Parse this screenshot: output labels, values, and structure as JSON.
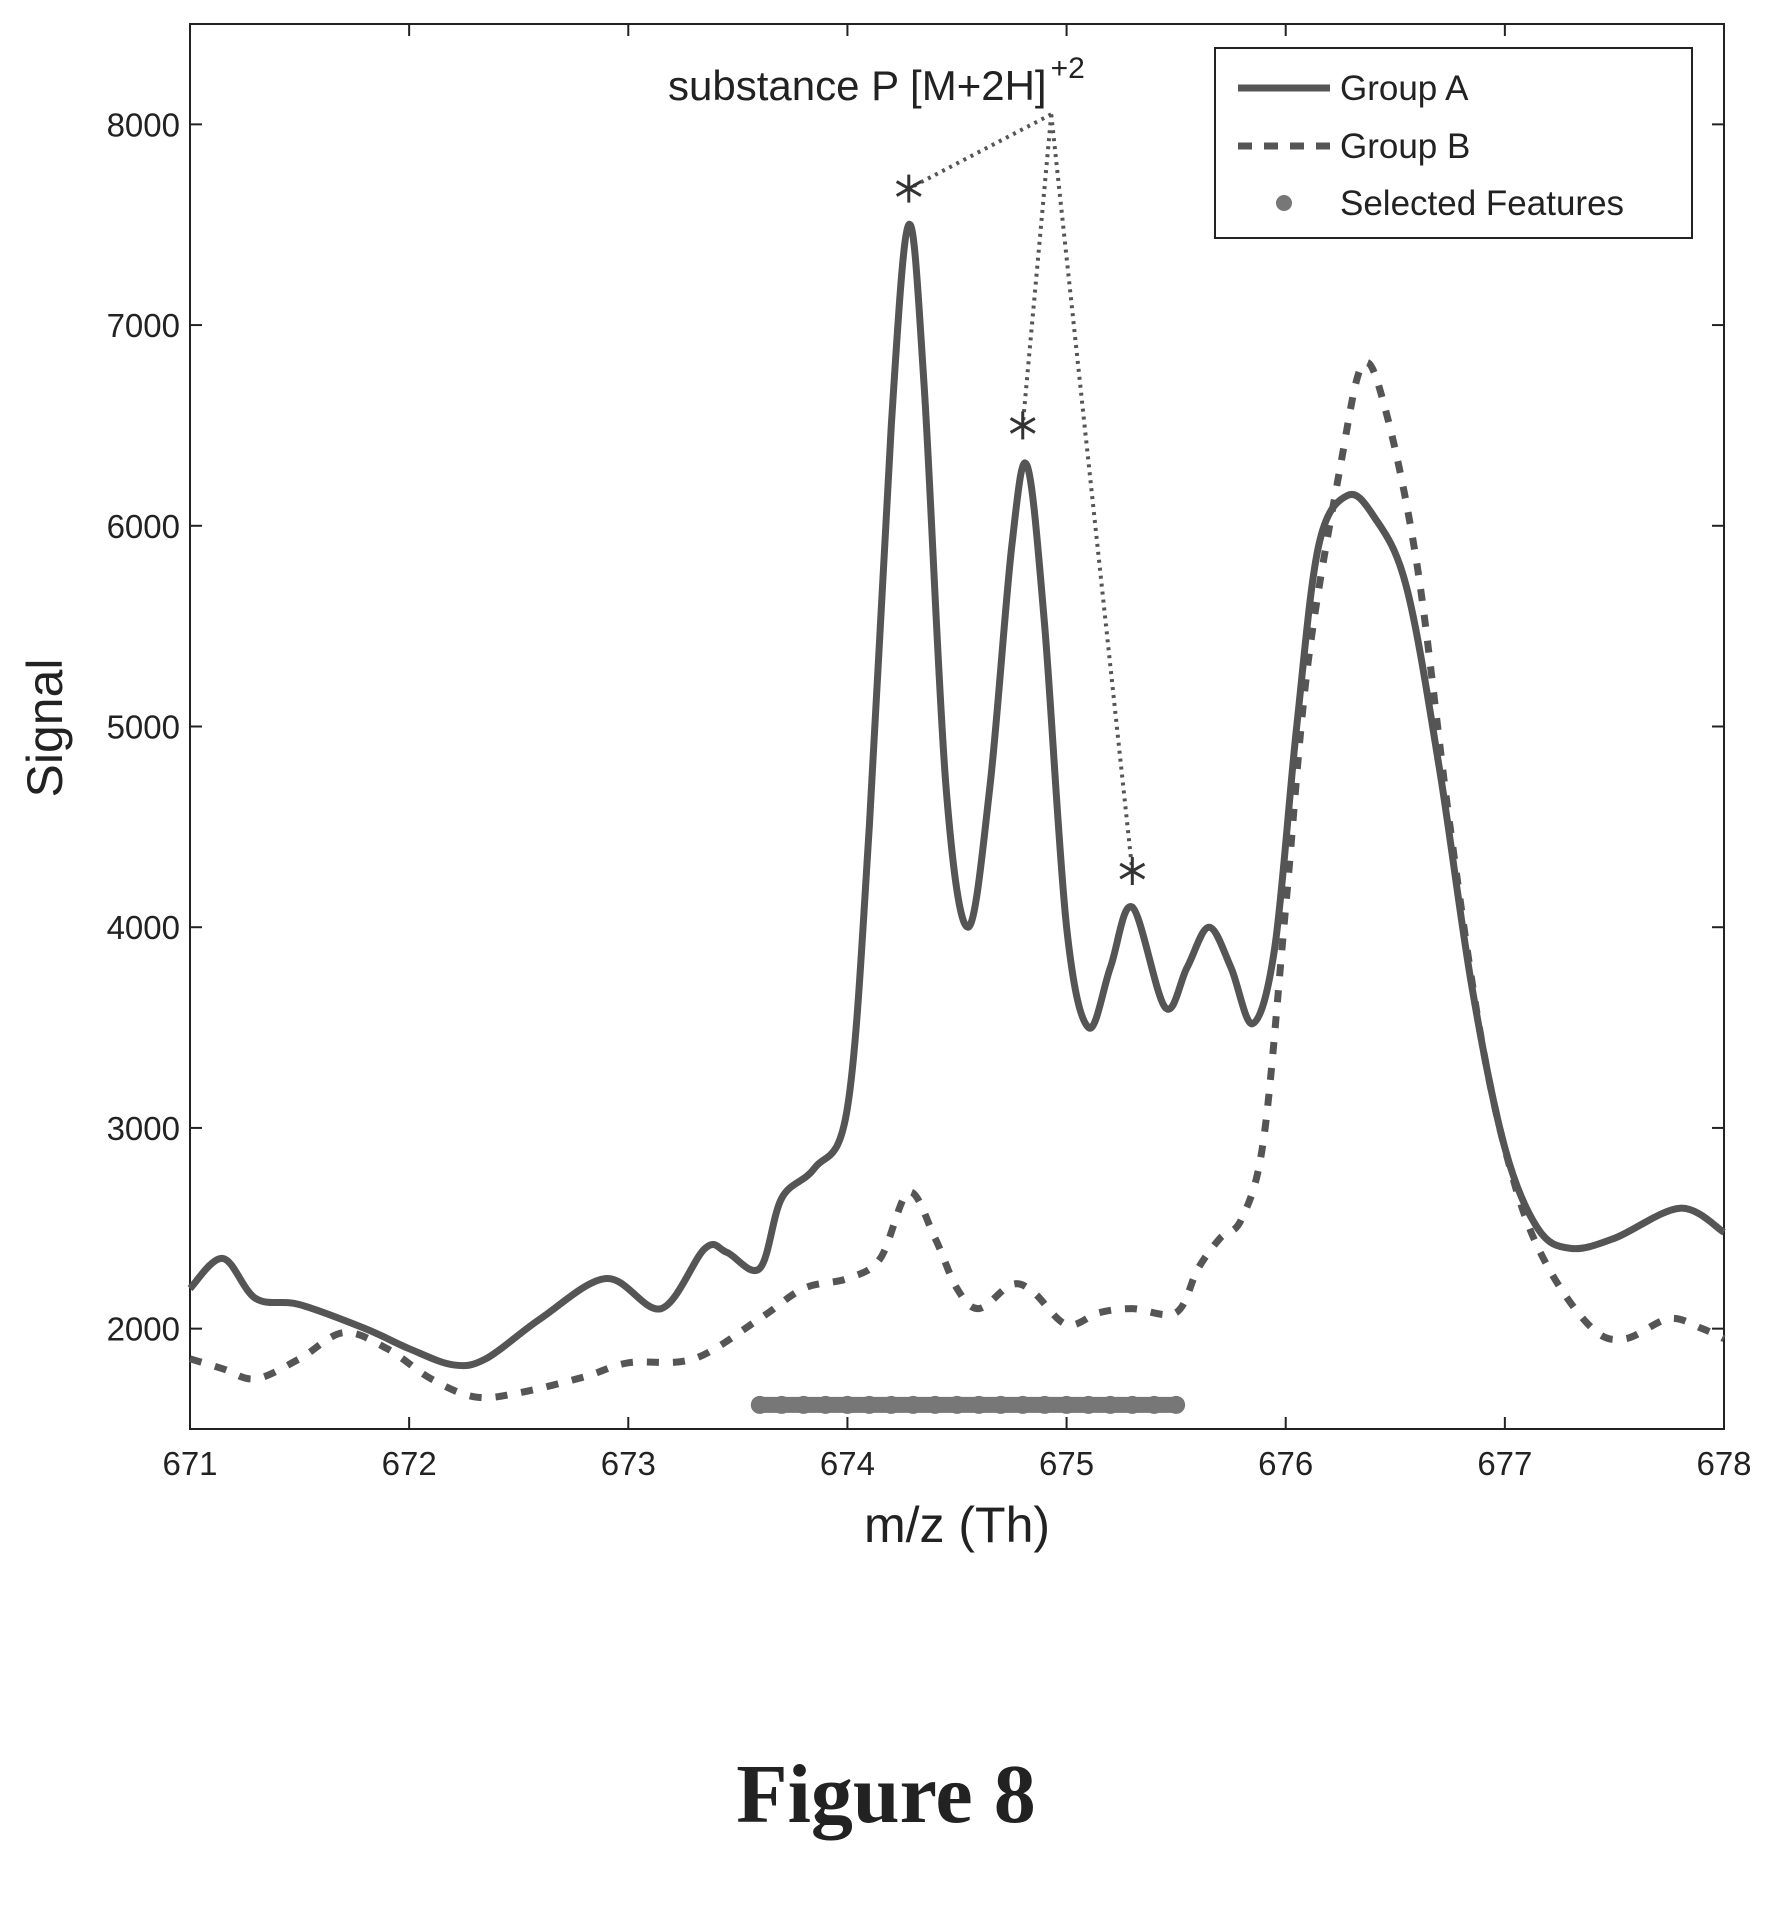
{
  "chart_data": {
    "type": "line",
    "xlabel": "m/z (Th)",
    "ylabel": "Signal",
    "xlim": [
      671,
      678
    ],
    "ylim": [
      1500,
      8500
    ],
    "x_ticks": [
      "671",
      "672",
      "673",
      "674",
      "675",
      "676",
      "677",
      "678"
    ],
    "y_ticks": [
      "2000",
      "3000",
      "4000",
      "5000",
      "6000",
      "7000",
      "8000"
    ],
    "grid": false,
    "legend_position": "top-right",
    "legend": [
      "Group A",
      "Group B",
      "Selected Features"
    ],
    "series": [
      {
        "name": "Group A",
        "style": "solid",
        "x": [
          671.0,
          671.15,
          671.3,
          671.5,
          671.8,
          672.0,
          672.2,
          672.35,
          672.6,
          672.9,
          673.15,
          673.35,
          673.45,
          673.6,
          673.7,
          673.85,
          674.0,
          674.1,
          674.2,
          674.28,
          674.35,
          674.45,
          674.55,
          674.65,
          674.75,
          674.82,
          674.9,
          675.0,
          675.1,
          675.2,
          675.3,
          675.45,
          675.55,
          675.65,
          675.75,
          675.85,
          675.95,
          676.05,
          676.15,
          676.28,
          676.4,
          676.55,
          676.7,
          676.85,
          677.0,
          677.15,
          677.3,
          677.5,
          677.8,
          678.0
        ],
        "y": [
          2200,
          2350,
          2150,
          2120,
          2000,
          1900,
          1820,
          1850,
          2050,
          2250,
          2100,
          2400,
          2380,
          2300,
          2650,
          2800,
          3100,
          4500,
          6500,
          7500,
          6700,
          4700,
          4000,
          4700,
          5900,
          6300,
          5500,
          4000,
          3500,
          3800,
          4100,
          3600,
          3800,
          4000,
          3800,
          3520,
          3900,
          5000,
          5900,
          6150,
          6050,
          5700,
          4800,
          3700,
          2900,
          2500,
          2400,
          2450,
          2600,
          2480
        ]
      },
      {
        "name": "Group B",
        "style": "dashed",
        "x": [
          671.0,
          671.15,
          671.3,
          671.5,
          671.7,
          671.9,
          672.1,
          672.3,
          672.5,
          672.8,
          673.0,
          673.3,
          673.6,
          673.8,
          674.0,
          674.15,
          674.28,
          674.4,
          674.5,
          674.6,
          674.75,
          674.85,
          675.0,
          675.15,
          675.3,
          675.5,
          675.6,
          675.7,
          675.8,
          675.9,
          676.0,
          676.1,
          676.25,
          676.35,
          676.45,
          676.6,
          676.75,
          676.9,
          677.05,
          677.2,
          677.4,
          677.55,
          677.75,
          677.9,
          678.0
        ],
        "y": [
          1850,
          1800,
          1750,
          1850,
          1980,
          1900,
          1750,
          1660,
          1680,
          1760,
          1830,
          1850,
          2050,
          2200,
          2250,
          2350,
          2680,
          2450,
          2200,
          2100,
          2220,
          2180,
          2020,
          2080,
          2100,
          2080,
          2300,
          2450,
          2550,
          2950,
          4100,
          5300,
          6300,
          6800,
          6600,
          5800,
          4500,
          3400,
          2700,
          2300,
          2000,
          1950,
          2050,
          2000,
          1950
        ]
      },
      {
        "name": "Selected Features",
        "style": "markers",
        "x": [
          673.6,
          673.7,
          673.8,
          673.9,
          674.0,
          674.1,
          674.2,
          674.3,
          674.4,
          674.5,
          674.6,
          674.7,
          674.8,
          674.9,
          675.0,
          675.1,
          675.2,
          675.3,
          675.4,
          675.5
        ],
        "y": [
          1620,
          1620,
          1620,
          1620,
          1620,
          1620,
          1620,
          1620,
          1620,
          1620,
          1620,
          1620,
          1620,
          1620,
          1620,
          1620,
          1620,
          1620,
          1620,
          1620
        ]
      }
    ],
    "annotation": {
      "text": "substance P [M+2H]",
      "superscript": "+2",
      "apex": {
        "x": 674.93,
        "y": 8050
      },
      "peak_markers": [
        {
          "x": 674.28,
          "y": 7680
        },
        {
          "x": 674.8,
          "y": 6500
        },
        {
          "x": 675.3,
          "y": 4280
        }
      ]
    },
    "caption": "Figure 8"
  },
  "colors": {
    "line": "#555555",
    "marker": "#777777",
    "axis": "#222222",
    "background": "#ffffff"
  }
}
